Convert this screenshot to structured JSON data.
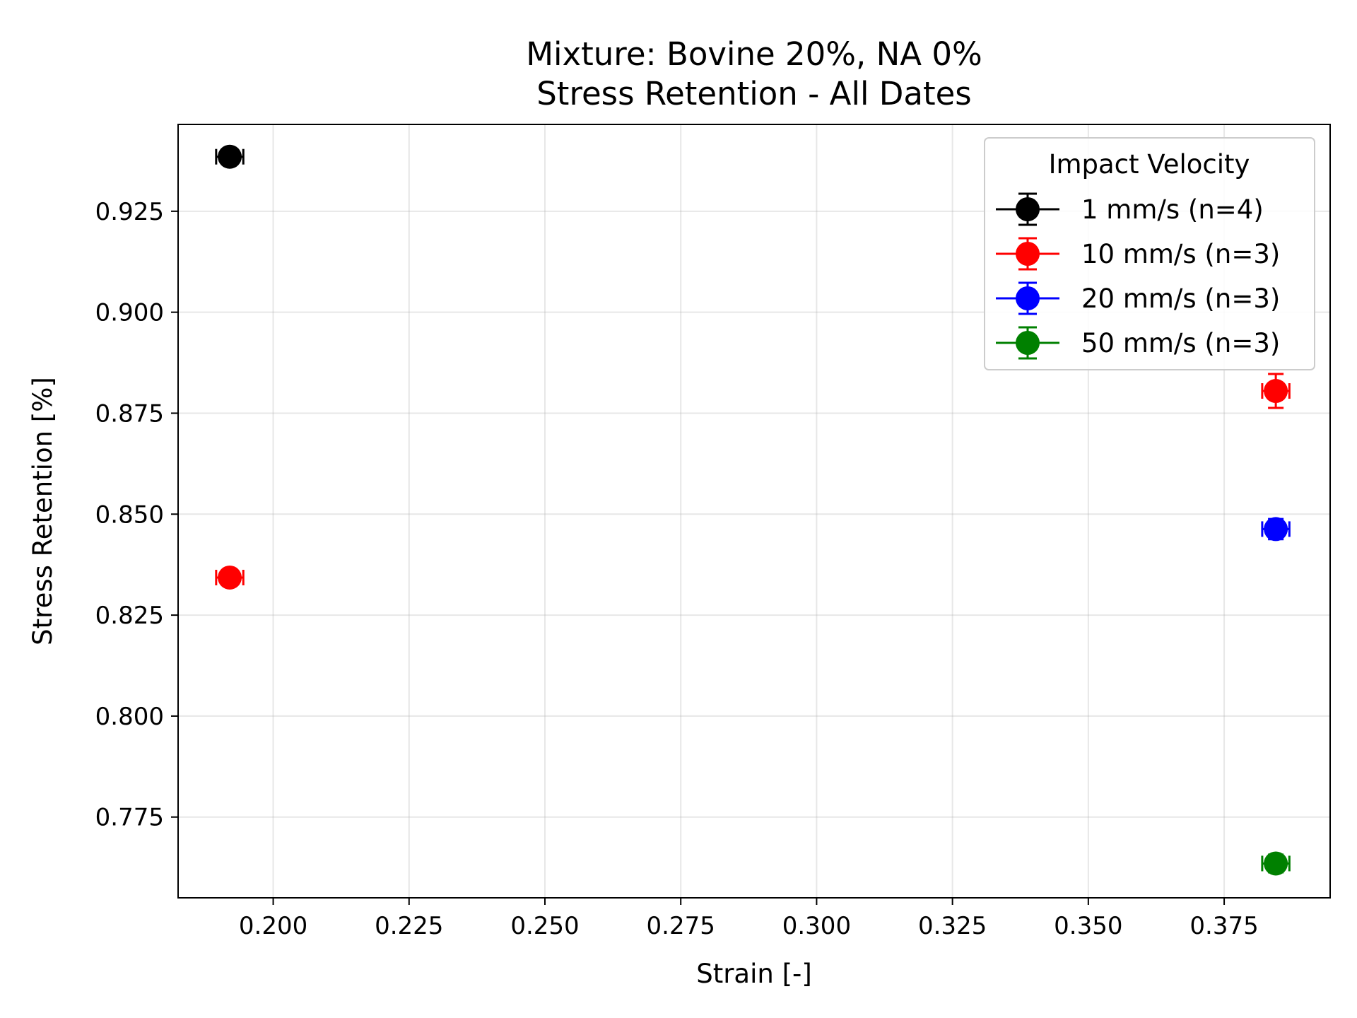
{
  "chart_data": {
    "type": "scatter",
    "title": "Mixture: Bovine 20%, NA 0%",
    "subtitle": "Stress Retention - All Dates",
    "xlabel": "Strain [-]",
    "ylabel": "Stress Retention [%]",
    "xlim": [
      0.1825,
      0.3945
    ],
    "ylim": [
      0.755,
      0.9465
    ],
    "xticks": [
      0.2,
      0.225,
      0.25,
      0.275,
      0.3,
      0.325,
      0.35,
      0.375
    ],
    "xtick_labels": [
      "0.200",
      "0.225",
      "0.250",
      "0.275",
      "0.300",
      "0.325",
      "0.350",
      "0.375"
    ],
    "yticks": [
      0.775,
      0.8,
      0.825,
      0.85,
      0.875,
      0.9,
      0.925
    ],
    "ytick_labels": [
      "0.775",
      "0.800",
      "0.825",
      "0.850",
      "0.875",
      "0.900",
      "0.925"
    ],
    "grid": true,
    "legend": {
      "title": "Impact Velocity",
      "position": "top-right"
    },
    "series": [
      {
        "name": "1 mm/s (n=4)",
        "color": "#000000",
        "points": [
          {
            "x": 0.192,
            "y": 0.9385,
            "xerr": 0.0025,
            "yerr": 0.0015
          }
        ]
      },
      {
        "name": "10 mm/s (n=3)",
        "color": "#ff0000",
        "points": [
          {
            "x": 0.192,
            "y": 0.8343,
            "xerr": 0.0025,
            "yerr": 0.0015
          },
          {
            "x": 0.3845,
            "y": 0.8805,
            "xerr": 0.0025,
            "yerr": 0.0042
          }
        ]
      },
      {
        "name": "20 mm/s (n=3)",
        "color": "#0000ff",
        "points": [
          {
            "x": 0.3845,
            "y": 0.8463,
            "xerr": 0.0025,
            "yerr": 0.0025
          }
        ]
      },
      {
        "name": "50 mm/s (n=3)",
        "color": "#008000",
        "points": [
          {
            "x": 0.3845,
            "y": 0.7635,
            "xerr": 0.0025,
            "yerr": 0.0022
          }
        ]
      }
    ]
  }
}
